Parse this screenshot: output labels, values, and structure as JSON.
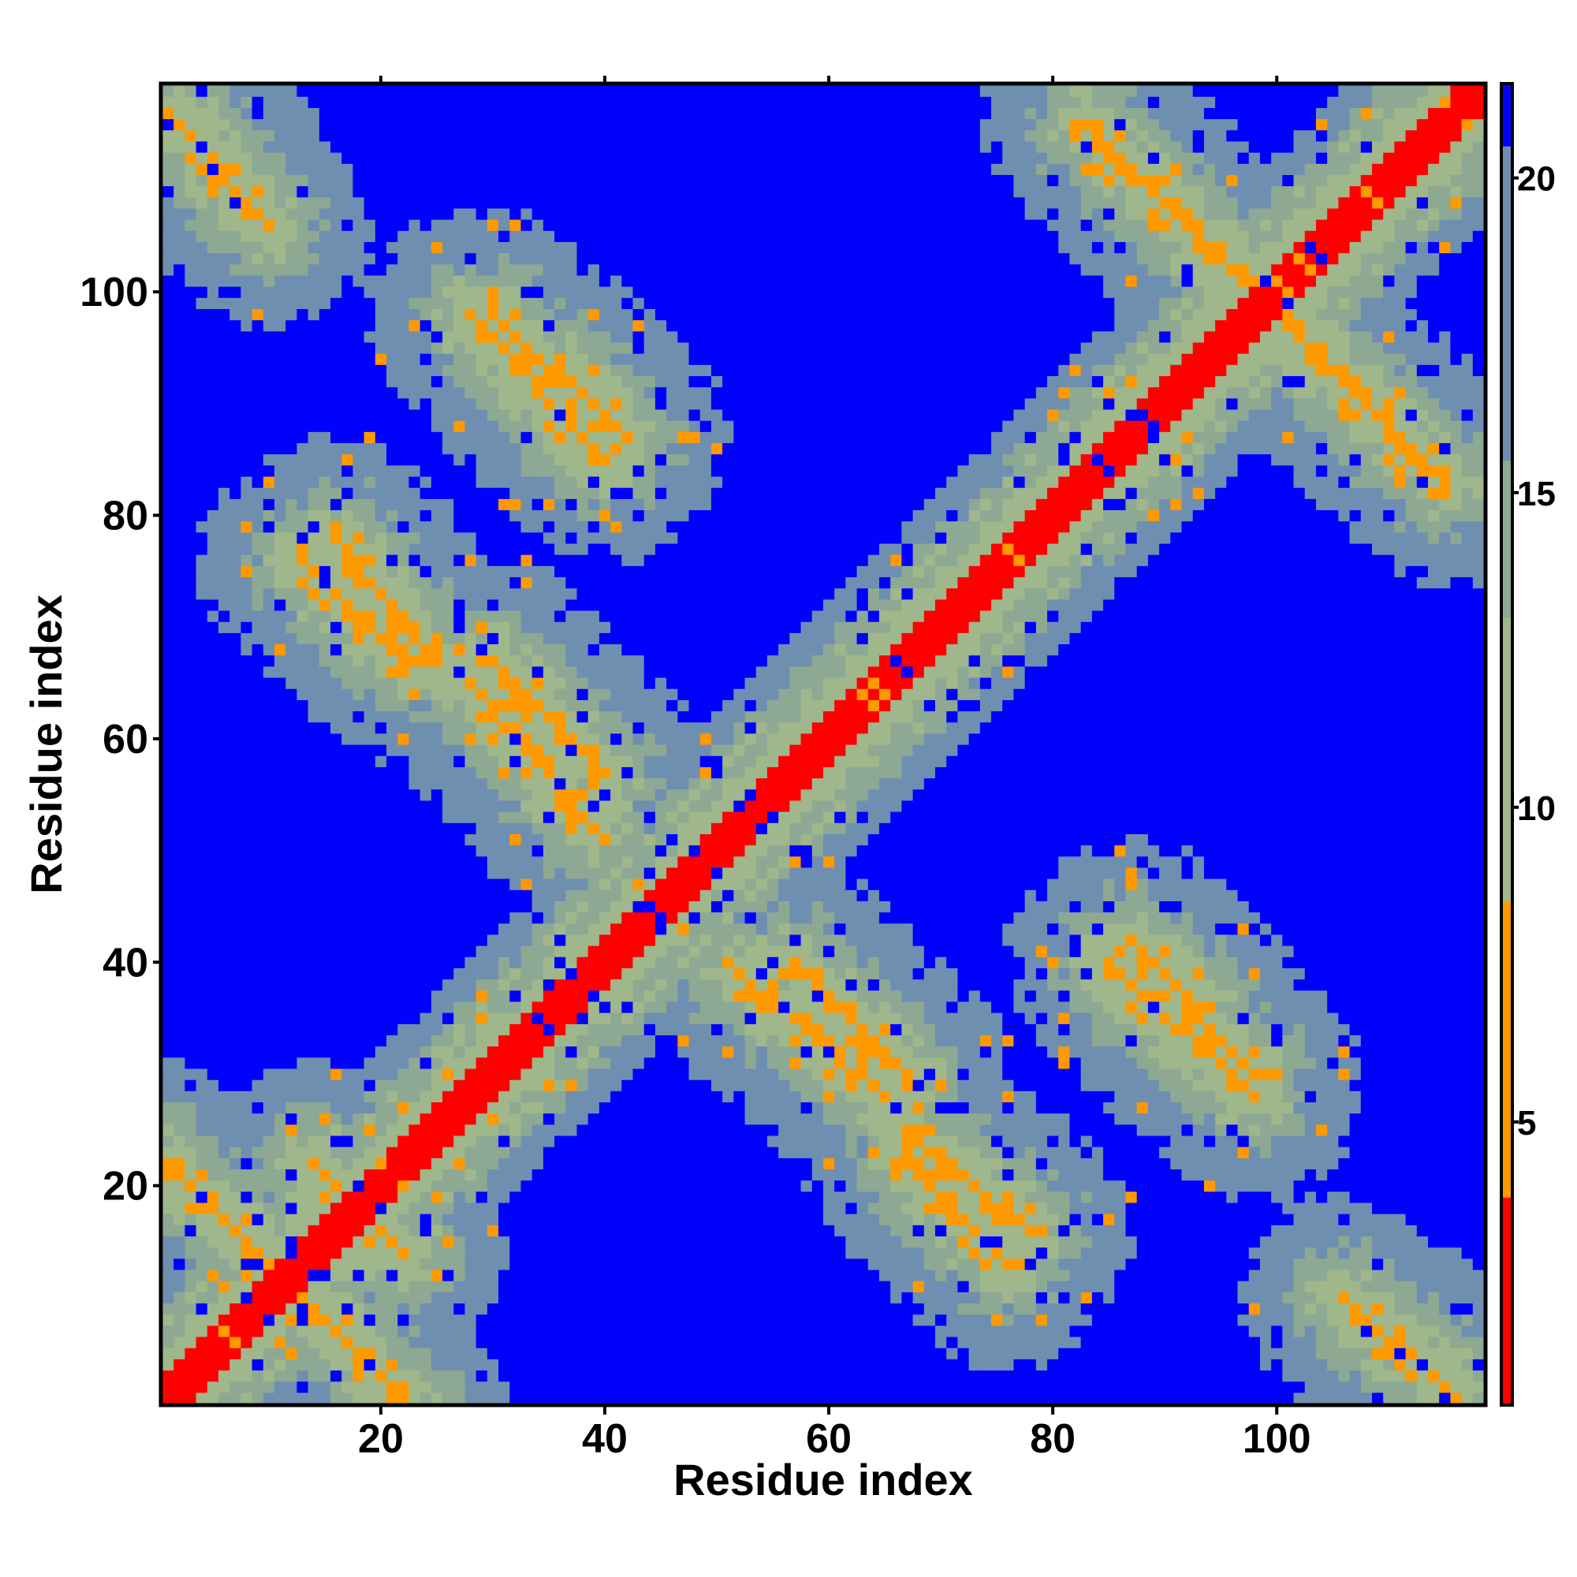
{
  "chart_data": {
    "type": "heatmap",
    "title": "",
    "xlabel": "Residue index",
    "ylabel": "Residue index",
    "n_residues": 118,
    "xlim": [
      0.5,
      118.5
    ],
    "ylim": [
      0.5,
      118.5
    ],
    "xticks": [
      20,
      40,
      60,
      80,
      100
    ],
    "yticks": [
      20,
      40,
      60,
      80,
      100
    ],
    "colorbar": {
      "ticks": [
        5,
        10,
        15,
        20
      ],
      "range": [
        0.5,
        21.5
      ],
      "levels": [
        {
          "max": 3.8,
          "color": "#ff0000"
        },
        {
          "max": 8.5,
          "color": "#ff9900"
        },
        {
          "max": 13.0,
          "color": "#9fb78a"
        },
        {
          "max": 15.5,
          "color": "#8ea993"
        },
        {
          "max": 20.5,
          "color": "#6f8fb0"
        },
        {
          "max": 21.5,
          "color": "#0000ff"
        }
      ]
    },
    "cell_model": {
      "description_of_values": "pairwise distance between residues i and j (approximate, read off colour scale)",
      "diagonal_band": {
        "value_near": 2,
        "width": 2
      },
      "strand_pairs": [
        {
          "i": [
            1,
            12
          ],
          "j": [
            22,
            11
          ],
          "value": 6
        },
        {
          "i": [
            14,
            20
          ],
          "j": [
            22,
            16
          ],
          "value": 6
        },
        {
          "i": [
            15,
            22
          ],
          "j": [
            8,
            1
          ],
          "value": 6
        },
        {
          "i": [
            16,
            24
          ],
          "j": [
            78,
            68
          ],
          "value": 6
        },
        {
          "i": [
            28,
            40
          ],
          "j": [
            98,
            85
          ],
          "value": 6
        },
        {
          "i": [
            30,
            40
          ],
          "j": [
            67,
            57
          ],
          "value": 6
        },
        {
          "i": [
            52,
            66
          ],
          "j": [
            39,
            27
          ],
          "value": 6
        },
        {
          "i": [
            67,
            76
          ],
          "j": [
            22,
            13
          ],
          "value": 6
        },
        {
          "i": [
            83,
            95
          ],
          "j": [
            115,
            103
          ],
          "value": 6
        },
        {
          "i": [
            87,
            98
          ],
          "j": [
            42,
            30
          ],
          "value": 6
        },
        {
          "i": [
            100,
            113
          ],
          "j": [
            98,
            85
          ],
          "value": 6
        },
        {
          "i": [
            106,
            116
          ],
          "j": [
            10,
            1
          ],
          "value": 6
        }
      ]
    }
  }
}
